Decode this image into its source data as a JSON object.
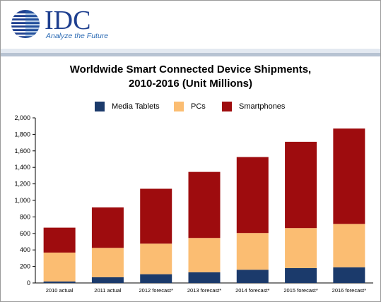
{
  "header": {
    "logo_text": "IDC",
    "tagline": "Analyze the Future"
  },
  "chart_data": {
    "type": "bar",
    "stacked": true,
    "title": "Worldwide Smart Connected Device Shipments,",
    "subtitle": "2010-2016 (Unit Millions)",
    "xlabel": "",
    "ylabel": "",
    "ylim": [
      0,
      2000
    ],
    "yticks": [
      0,
      200,
      400,
      600,
      800,
      1000,
      1200,
      1400,
      1600,
      1800,
      2000
    ],
    "ytick_labels": [
      "0",
      "200",
      "400",
      "600",
      "800",
      "1,000",
      "1,200",
      "1,400",
      "1,600",
      "1,800",
      "2,000"
    ],
    "grid": false,
    "legend_position": "top",
    "categories": [
      "2010 actual",
      "2011 actual",
      "2012 forecast*",
      "2013 forecast*",
      "2014 forecast*",
      "2015 forecast*",
      "2016 forecast*"
    ],
    "series": [
      {
        "name": "Media Tablets",
        "color": "#1b3a6b",
        "values": [
          18,
          70,
          106,
          130,
          160,
          180,
          190
        ]
      },
      {
        "name": "PCs",
        "color": "#fbbd72",
        "values": [
          350,
          355,
          370,
          415,
          445,
          485,
          525
        ]
      },
      {
        "name": "Smartphones",
        "color": "#9e0c0e",
        "values": [
          302,
          490,
          665,
          800,
          920,
          1045,
          1155
        ]
      }
    ]
  }
}
